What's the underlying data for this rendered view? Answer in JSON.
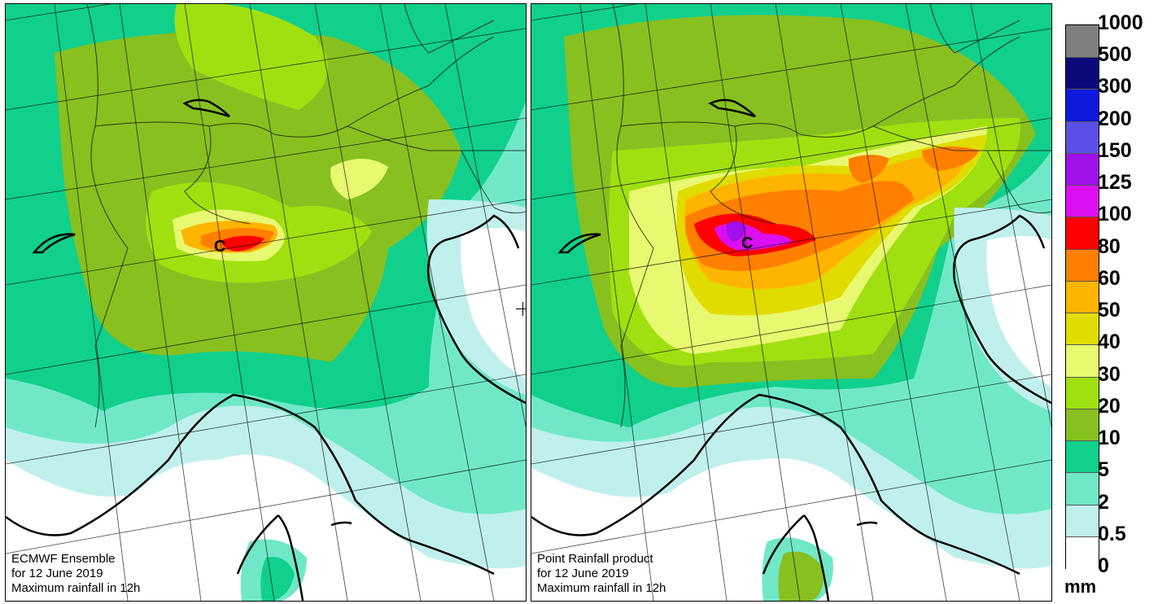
{
  "panels": [
    {
      "caption": [
        "ECMWF Ensemble",
        "for 12 June 2019",
        "Maximum rainfall in 12h"
      ],
      "marker": "C"
    },
    {
      "caption": [
        "Point Rainfall product",
        "for 12 June 2019",
        "Maximum rainfall in 12h"
      ],
      "marker": "C"
    }
  ],
  "legend": {
    "unit": "mm",
    "levels": [
      "1000",
      "500",
      "300",
      "200",
      "150",
      "125",
      "100",
      "80",
      "60",
      "50",
      "40",
      "30",
      "20",
      "10",
      "5",
      "2",
      "0.5",
      "0"
    ],
    "colors": [
      "#7f7f7f",
      "#0a0a7a",
      "#0f18dd",
      "#5a50e8",
      "#a010e8",
      "#dc0ff0",
      "#ff0000",
      "#ff7f00",
      "#ffb400",
      "#e0dc00",
      "#e8f870",
      "#a0e010",
      "#88c020",
      "#10d08c",
      "#70e8c8",
      "#c0f0ec",
      "#ffffff"
    ]
  },
  "cursor_icon": "crosshair-icon"
}
